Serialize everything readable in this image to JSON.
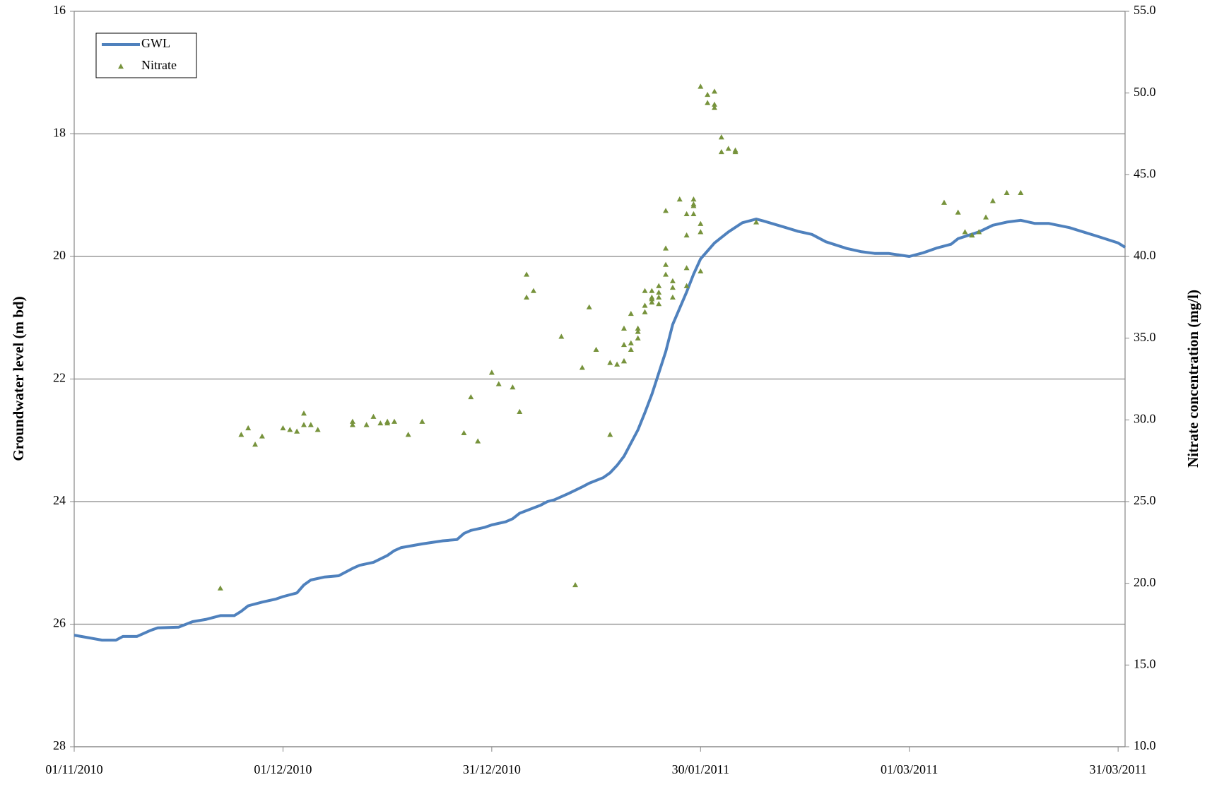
{
  "chart_data": {
    "type": "line",
    "ylabel": "Groundwater level (m bd)",
    "y2label": "Nitrate concentration (mg/l)",
    "xlim": [
      "01/11/2010",
      "01/04/2011"
    ],
    "xticks": [
      "01/11/2010",
      "01/12/2010",
      "31/12/2010",
      "30/01/2011",
      "01/03/2011",
      "31/03/2011"
    ],
    "ylim": [
      16,
      28
    ],
    "y_inverted": true,
    "yticks": [
      16,
      18,
      20,
      22,
      24,
      26,
      28
    ],
    "y2lim": [
      10,
      55
    ],
    "y2ticks": [
      {
        "value": 10,
        "label": "10.0"
      },
      {
        "value": 15,
        "label": "15.0"
      },
      {
        "value": 20,
        "label": "20.0"
      },
      {
        "value": 25,
        "label": "25.0"
      },
      {
        "value": 30,
        "label": "30.0"
      },
      {
        "value": 35,
        "label": "35.0"
      },
      {
        "value": 40,
        "label": "40.0"
      },
      {
        "value": 45,
        "label": "45.0"
      },
      {
        "value": 50,
        "label": "50.0"
      },
      {
        "value": 55,
        "label": "55.0"
      }
    ],
    "grid": true,
    "legend": "upper left",
    "series": [
      {
        "name": "GWL",
        "type": "line",
        "color": "#4f81bd",
        "x": [
          "01/11/2010",
          "05/11/2010",
          "07/11/2010",
          "08/11/2010",
          "10/11/2010",
          "12/11/2010",
          "13/11/2010",
          "16/11/2010",
          "18/11/2010",
          "20/11/2010",
          "22/11/2010",
          "24/11/2010",
          "25/11/2010",
          "26/11/2010",
          "28/11/2010",
          "30/11/2010",
          "01/12/2010",
          "03/12/2010",
          "04/12/2010",
          "05/12/2010",
          "07/12/2010",
          "09/12/2010",
          "11/12/2010",
          "12/12/2010",
          "14/12/2010",
          "16/12/2010",
          "17/12/2010",
          "18/12/2010",
          "21/12/2010",
          "24/12/2010",
          "26/12/2010",
          "27/12/2010",
          "28/12/2010",
          "30/12/2010",
          "31/12/2010",
          "02/01/2011",
          "03/01/2011",
          "04/01/2011",
          "07/01/2011",
          "08/01/2011",
          "09/01/2011",
          "11/01/2011",
          "13/01/2011",
          "14/01/2011",
          "16/01/2011",
          "17/01/2011",
          "18/01/2011",
          "19/01/2011",
          "21/01/2011",
          "22/01/2011",
          "23/01/2011",
          "25/01/2011",
          "26/01/2011",
          "28/01/2011",
          "29/01/2011",
          "30/01/2011",
          "01/02/2011",
          "03/02/2011",
          "05/02/2011",
          "07/02/2011",
          "08/02/2011",
          "11/02/2011",
          "13/02/2011",
          "15/02/2011",
          "17/02/2011",
          "20/02/2011",
          "22/02/2011",
          "24/02/2011",
          "26/02/2011",
          "01/03/2011",
          "03/03/2011",
          "05/03/2011",
          "07/03/2011",
          "08/03/2011",
          "11/03/2011",
          "13/03/2011",
          "15/03/2011",
          "17/03/2011",
          "19/03/2011",
          "21/03/2011",
          "24/03/2011",
          "26/03/2011",
          "28/03/2011",
          "31/03/2011",
          "01/04/2011"
        ],
        "values": [
          26.18,
          26.26,
          26.26,
          26.2,
          26.2,
          26.1,
          26.06,
          26.05,
          25.96,
          25.92,
          25.86,
          25.86,
          25.79,
          25.7,
          25.64,
          25.59,
          25.55,
          25.49,
          25.36,
          25.28,
          25.23,
          25.21,
          25.09,
          25.04,
          24.99,
          24.88,
          24.8,
          24.75,
          24.69,
          24.64,
          24.62,
          24.52,
          24.47,
          24.42,
          24.38,
          24.33,
          24.28,
          24.19,
          24.06,
          24.0,
          23.97,
          23.87,
          23.76,
          23.7,
          23.61,
          23.53,
          23.41,
          23.26,
          22.83,
          22.55,
          22.25,
          21.55,
          21.11,
          20.58,
          20.29,
          20.04,
          19.78,
          19.6,
          19.45,
          19.39,
          19.42,
          19.52,
          19.59,
          19.64,
          19.76,
          19.87,
          19.92,
          19.95,
          19.95,
          20.0,
          19.94,
          19.86,
          19.8,
          19.71,
          19.6,
          19.49,
          19.44,
          19.41,
          19.46,
          19.46,
          19.53,
          19.6,
          19.67,
          19.78,
          19.85
        ]
      },
      {
        "name": "Nitrate",
        "type": "scatter",
        "axis": "y2",
        "color": "#77933c",
        "x": [
          "22/11/2010",
          "25/11/2010",
          "26/11/2010",
          "27/11/2010",
          "28/11/2010",
          "01/12/2010",
          "02/12/2010",
          "03/12/2010",
          "04/12/2010",
          "04/12/2010",
          "05/12/2010",
          "06/12/2010",
          "11/12/2010",
          "11/12/2010",
          "13/12/2010",
          "14/12/2010",
          "15/12/2010",
          "16/12/2010",
          "16/12/2010",
          "17/12/2010",
          "19/12/2010",
          "21/12/2010",
          "27/12/2010",
          "28/12/2010",
          "29/12/2010",
          "31/12/2010",
          "01/01/2011",
          "03/01/2011",
          "04/01/2011",
          "05/01/2011",
          "05/01/2011",
          "06/01/2011",
          "10/01/2011",
          "12/01/2011",
          "13/01/2011",
          "14/01/2011",
          "15/01/2011",
          "17/01/2011",
          "17/01/2011",
          "18/01/2011",
          "19/01/2011",
          "19/01/2011",
          "19/01/2011",
          "19/01/2011",
          "20/01/2011",
          "20/01/2011",
          "20/01/2011",
          "21/01/2011",
          "21/01/2011",
          "21/01/2011",
          "22/01/2011",
          "22/01/2011",
          "22/01/2011",
          "23/01/2011",
          "23/01/2011",
          "23/01/2011",
          "23/01/2011",
          "24/01/2011",
          "24/01/2011",
          "24/01/2011",
          "24/01/2011",
          "25/01/2011",
          "25/01/2011",
          "25/01/2011",
          "25/01/2011",
          "26/01/2011",
          "26/01/2011",
          "26/01/2011",
          "27/01/2011",
          "28/01/2011",
          "28/01/2011",
          "28/01/2011",
          "28/01/2011",
          "29/01/2011",
          "29/01/2011",
          "29/01/2011",
          "29/01/2011",
          "30/01/2011",
          "30/01/2011",
          "30/01/2011",
          "30/01/2011",
          "31/01/2011",
          "31/01/2011",
          "01/02/2011",
          "01/02/2011",
          "01/02/2011",
          "02/02/2011",
          "02/02/2011",
          "03/02/2011",
          "04/02/2011",
          "04/02/2011",
          "07/02/2011",
          "06/03/2011",
          "08/03/2011",
          "09/03/2011",
          "10/03/2011",
          "10/03/2011",
          "11/03/2011",
          "12/03/2011",
          "13/03/2011",
          "15/03/2011",
          "17/03/2011"
        ],
        "values": [
          19.7,
          29.1,
          29.5,
          28.5,
          29.0,
          29.5,
          29.4,
          29.3,
          29.7,
          30.4,
          29.7,
          29.4,
          29.7,
          29.9,
          29.7,
          30.2,
          29.8,
          29.8,
          29.9,
          29.9,
          29.1,
          29.9,
          29.2,
          31.4,
          28.7,
          32.9,
          32.2,
          32.0,
          30.5,
          37.5,
          38.9,
          37.9,
          35.1,
          19.9,
          33.2,
          36.9,
          34.3,
          33.5,
          29.1,
          33.4,
          33.6,
          34.6,
          33.6,
          35.6,
          34.3,
          36.5,
          34.7,
          35.0,
          35.4,
          35.6,
          36.6,
          37.0,
          37.9,
          37.5,
          37.2,
          37.4,
          37.9,
          37.5,
          37.1,
          37.8,
          38.2,
          40.5,
          42.8,
          39.5,
          38.9,
          37.5,
          38.1,
          38.5,
          43.5,
          38.2,
          39.3,
          41.3,
          42.6,
          43.1,
          43.5,
          43.2,
          42.6,
          42.0,
          41.5,
          39.1,
          50.4,
          49.9,
          49.4,
          49.1,
          50.1,
          49.3,
          47.3,
          46.4,
          46.6,
          46.4,
          46.5,
          42.1,
          43.3,
          42.7,
          41.5,
          41.3,
          41.3,
          41.5,
          42.4,
          43.4,
          43.9,
          43.9
        ]
      }
    ]
  }
}
